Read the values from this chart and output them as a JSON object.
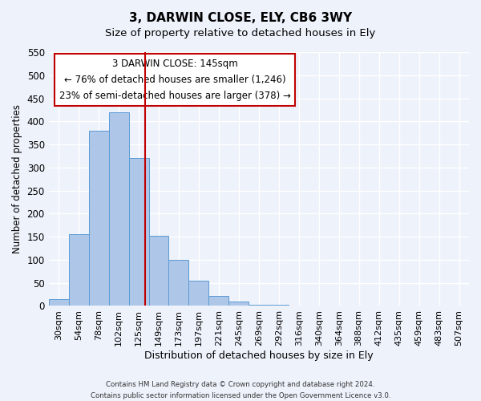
{
  "title": "3, DARWIN CLOSE, ELY, CB6 3WY",
  "subtitle": "Size of property relative to detached houses in Ely",
  "xlabel": "Distribution of detached houses by size in Ely",
  "ylabel": "Number of detached properties",
  "footer_line1": "Contains HM Land Registry data © Crown copyright and database right 2024.",
  "footer_line2": "Contains public sector information licensed under the Open Government Licence v3.0.",
  "bin_labels": [
    "30sqm",
    "54sqm",
    "78sqm",
    "102sqm",
    "125sqm",
    "149sqm",
    "173sqm",
    "197sqm",
    "221sqm",
    "245sqm",
    "269sqm",
    "292sqm",
    "316sqm",
    "340sqm",
    "364sqm",
    "388sqm",
    "412sqm",
    "435sqm",
    "459sqm",
    "483sqm",
    "507sqm"
  ],
  "bar_values": [
    15,
    155,
    380,
    420,
    320,
    152,
    100,
    55,
    22,
    10,
    3,
    2,
    1,
    1,
    1,
    1,
    0,
    0,
    1,
    0,
    1
  ],
  "bar_color": "#aec6e8",
  "bar_edge_color": "#5b9bd5",
  "ylim": [
    0,
    550
  ],
  "yticks": [
    0,
    50,
    100,
    150,
    200,
    250,
    300,
    350,
    400,
    450,
    500,
    550
  ],
  "vline_color": "#c00000",
  "annotation_title": "3 DARWIN CLOSE: 145sqm",
  "annotation_line1": "← 76% of detached houses are smaller (1,246)",
  "annotation_line2": "23% of semi-detached houses are larger (378) →",
  "annotation_box_color": "#ffffff",
  "annotation_box_edgecolor": "#c00000",
  "bg_color": "#eef2fb",
  "grid_color": "#ffffff"
}
